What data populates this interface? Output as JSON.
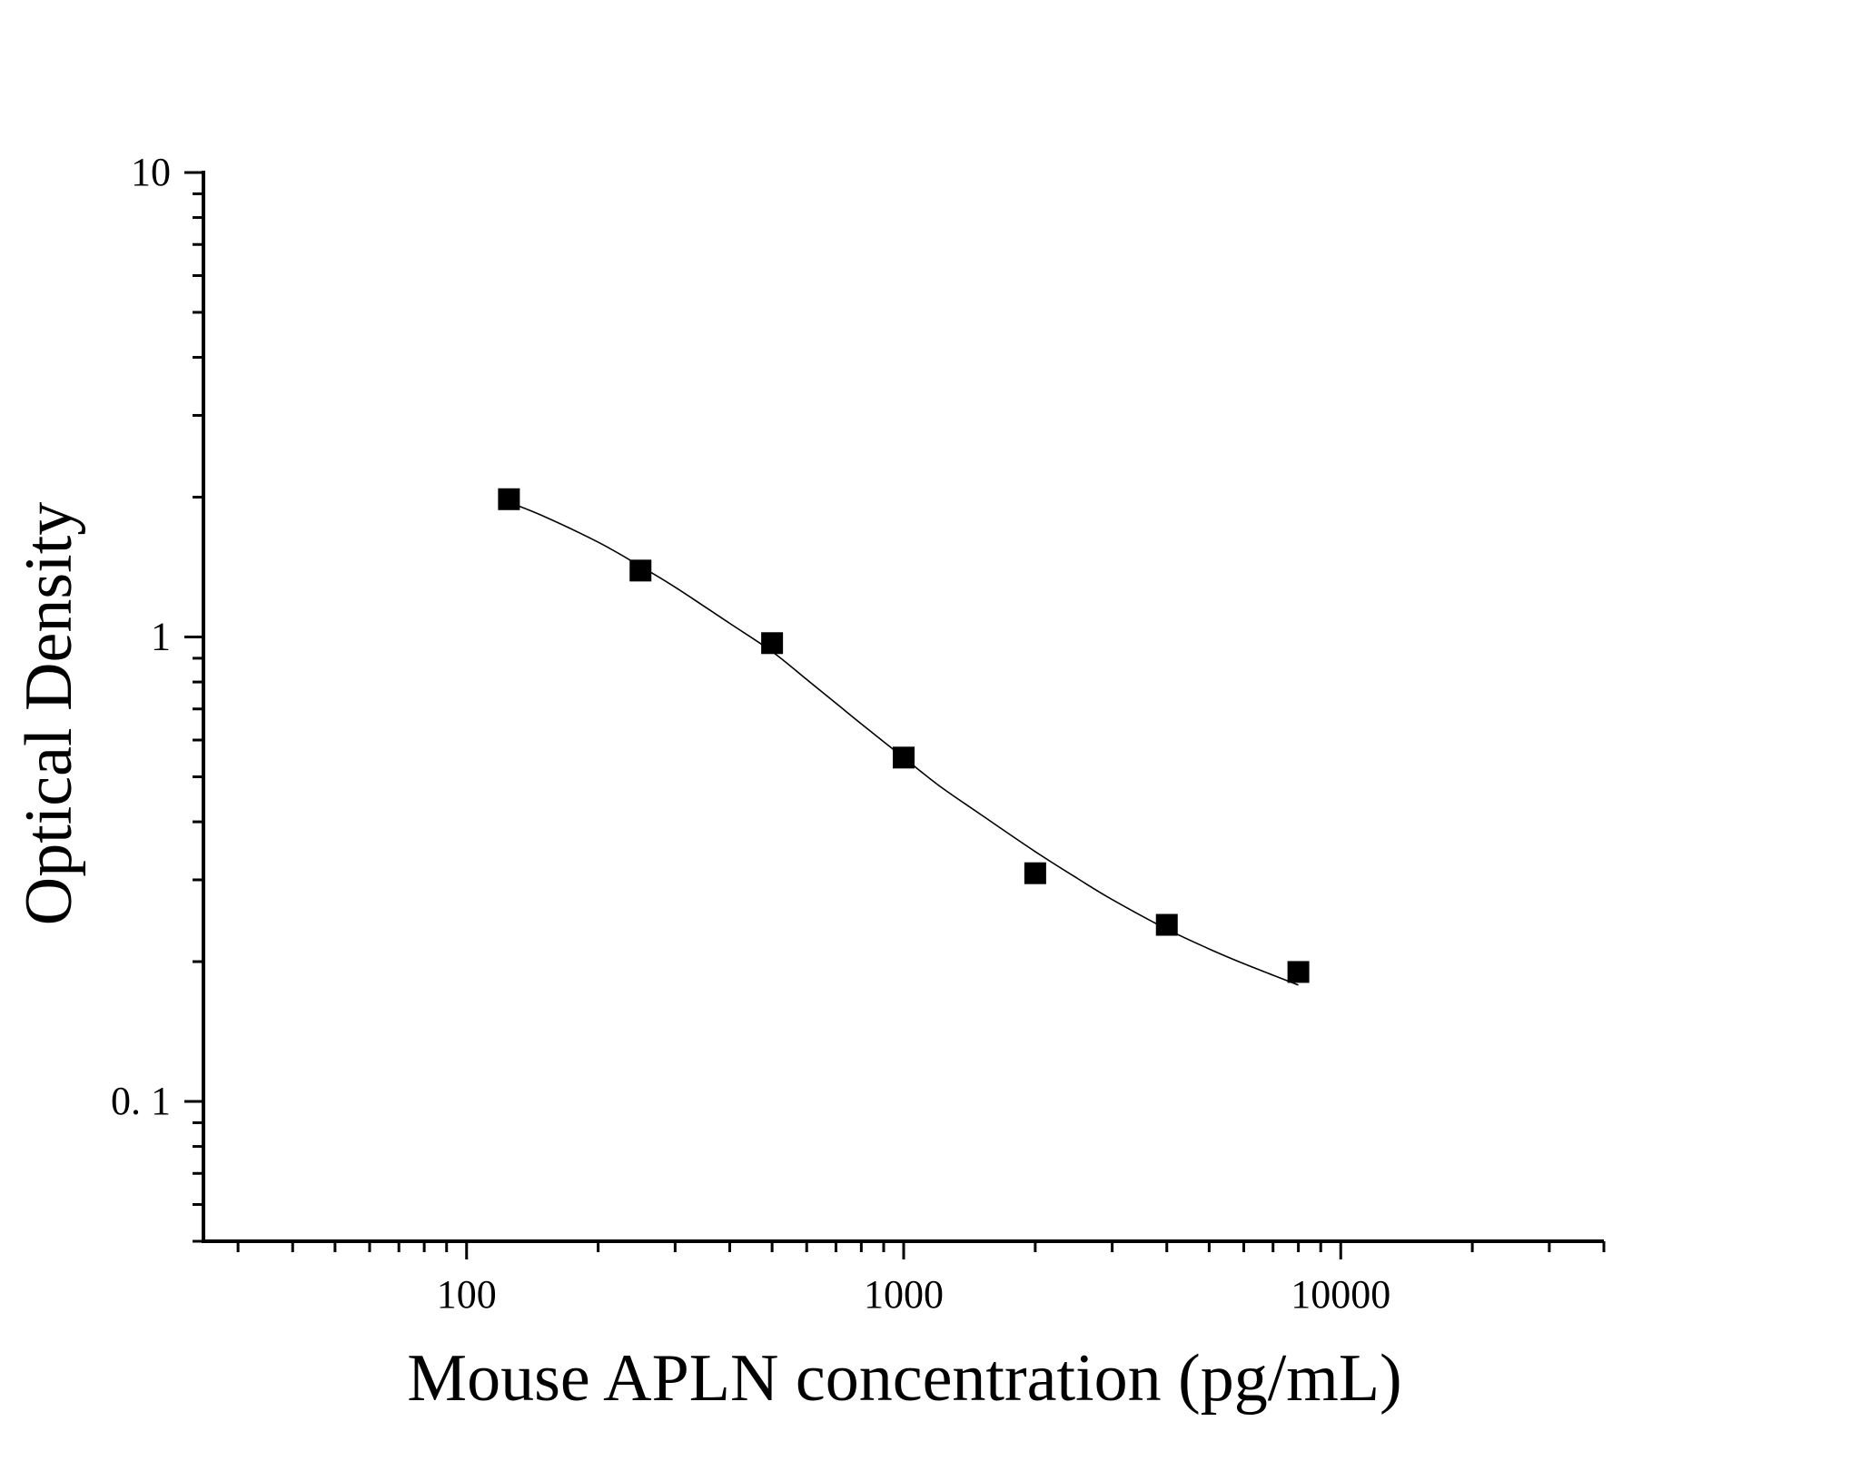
{
  "chart_data": {
    "type": "scatter",
    "title": "",
    "xlabel": "Mouse APLN concentration (pg/mL)",
    "ylabel": "Optical Density",
    "x_scale": "log",
    "y_scale": "log",
    "xlim": [
      25,
      40000
    ],
    "ylim": [
      0.05,
      10
    ],
    "x_ticks": [
      {
        "value": 100,
        "label": "100"
      },
      {
        "value": 1000,
        "label": "1000"
      },
      {
        "value": 10000,
        "label": "10000"
      }
    ],
    "y_ticks": [
      {
        "value": 0.1,
        "label": "0. 1"
      },
      {
        "value": 1,
        "label": "1"
      },
      {
        "value": 10,
        "label": "10"
      }
    ],
    "grid": false,
    "legend": "none",
    "marker_color": "#000000",
    "series": [
      {
        "x": [
          125,
          250,
          500,
          1000,
          2000,
          4000,
          8000
        ],
        "y": [
          1.98,
          1.39,
          0.97,
          0.55,
          0.31,
          0.24,
          0.19
        ]
      }
    ],
    "fit_curve": {
      "x": [
        125,
        150,
        200,
        250,
        300,
        400,
        500,
        600,
        700,
        800,
        1000,
        1200,
        1500,
        2000,
        2500,
        3000,
        4000,
        5000,
        6000,
        7000,
        8000
      ],
      "y": [
        1.95,
        1.82,
        1.6,
        1.42,
        1.28,
        1.07,
        0.93,
        0.81,
        0.72,
        0.65,
        0.55,
        0.48,
        0.415,
        0.345,
        0.302,
        0.272,
        0.235,
        0.213,
        0.198,
        0.187,
        0.178
      ]
    }
  }
}
